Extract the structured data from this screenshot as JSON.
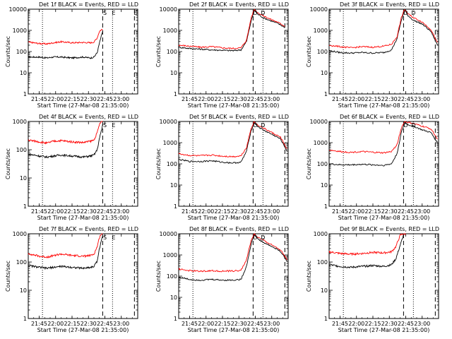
{
  "figure": {
    "background": "#ffffff",
    "events_color": "#000000",
    "lld_color": "#ff0000",
    "ylabel": "Counts/sec",
    "xlabel": "Start Time (27-Mar-08 21:35:00)",
    "x_ticks": [
      "21:45",
      "22:00",
      "22:15",
      "22:30",
      "22:45",
      "23:00"
    ]
  },
  "chart_data": [
    {
      "type": "line",
      "title": "Det 1f BLACK = Events, RED = LLD",
      "xlim": [
        "21:35",
        "23:15"
      ],
      "ylim": [
        1,
        10000
      ],
      "yscale": "log",
      "y_tick_labels": [
        "1",
        "10",
        "100",
        "1000",
        "10000"
      ],
      "vlines_dotted": [
        "21:48",
        "22:52"
      ],
      "vlines_dashed": [
        "22:43",
        "23:12"
      ],
      "markers": [
        {
          "label": "S",
          "time": "22:45"
        },
        {
          "label": "E",
          "time": "22:53"
        },
        {
          "label": "E",
          "time": "23:13"
        }
      ],
      "series": [
        {
          "times": [
            "21:35",
            "21:45",
            "21:52",
            "21:58",
            "22:05",
            "22:15",
            "22:25",
            "22:32",
            "22:35",
            "22:38",
            "22:40",
            "22:42",
            "22:43"
          ],
          "values": [
            55,
            55,
            50,
            55,
            55,
            50,
            55,
            50,
            55,
            90,
            250,
            600,
            900
          ]
        },
        {
          "times": [
            "21:35",
            "21:45",
            "21:52",
            "21:58",
            "22:05",
            "22:15",
            "22:25",
            "22:32",
            "22:35",
            "22:38",
            "22:40",
            "22:42",
            "22:43"
          ],
          "values": [
            280,
            240,
            230,
            260,
            290,
            260,
            270,
            260,
            280,
            450,
            900,
            1100,
            1100
          ]
        }
      ]
    },
    {
      "type": "line",
      "title": "Det 2f BLACK = Events, RED = LLD",
      "xlim": [
        "21:35",
        "23:15"
      ],
      "ylim": [
        1,
        10000
      ],
      "yscale": "log",
      "y_tick_labels": [
        "1",
        "10",
        "100",
        "1000",
        "10000"
      ],
      "vlines_dotted": [
        "21:48",
        "22:52"
      ],
      "vlines_dashed": [
        "22:43",
        "23:12"
      ],
      "markers": [
        {
          "label": "D",
          "time": "22:45"
        },
        {
          "label": "D",
          "time": "22:52"
        }
      ],
      "series": [
        {
          "times": [
            "21:35",
            "21:45",
            "21:55",
            "22:05",
            "22:15",
            "22:25",
            "22:32",
            "22:37",
            "22:41",
            "22:44",
            "22:47",
            "22:52",
            "22:58",
            "23:05",
            "23:12"
          ],
          "values": [
            160,
            140,
            130,
            120,
            115,
            110,
            120,
            300,
            2500,
            9000,
            6000,
            4000,
            3000,
            2200,
            1400
          ]
        },
        {
          "times": [
            "21:35",
            "21:45",
            "21:55",
            "22:05",
            "22:15",
            "22:25",
            "22:32",
            "22:37",
            "22:41",
            "22:44",
            "22:47",
            "22:52",
            "22:58",
            "23:05",
            "23:12"
          ],
          "values": [
            200,
            180,
            160,
            170,
            150,
            140,
            150,
            350,
            3500,
            10000,
            7000,
            5000,
            3500,
            2500,
            1600
          ]
        }
      ]
    },
    {
      "type": "line",
      "title": "Det 3f BLACK = Events, RED = LLD",
      "xlim": [
        "21:35",
        "23:15"
      ],
      "ylim": [
        1,
        10000
      ],
      "yscale": "log",
      "y_tick_labels": [
        "1",
        "10",
        "100",
        "1000",
        "10000"
      ],
      "vlines_dotted": [
        "21:48",
        "22:52"
      ],
      "vlines_dashed": [
        "22:43",
        "23:12"
      ],
      "markers": [
        {
          "label": "D",
          "time": "22:45"
        },
        {
          "label": "D",
          "time": "22:52"
        }
      ],
      "series": [
        {
          "times": [
            "21:35",
            "21:45",
            "21:55",
            "22:05",
            "22:15",
            "22:25",
            "22:32",
            "22:37",
            "22:41",
            "22:44",
            "22:47",
            "22:52",
            "23:00",
            "23:08",
            "23:14"
          ],
          "values": [
            110,
            90,
            85,
            90,
            85,
            90,
            120,
            400,
            3000,
            9000,
            5000,
            3000,
            2000,
            900,
            200
          ]
        },
        {
          "times": [
            "21:35",
            "21:45",
            "21:55",
            "22:05",
            "22:15",
            "22:25",
            "22:32",
            "22:37",
            "22:41",
            "22:44",
            "22:47",
            "22:52",
            "23:00",
            "23:08",
            "23:14"
          ],
          "values": [
            200,
            170,
            150,
            170,
            160,
            180,
            220,
            500,
            4000,
            10000,
            6000,
            4000,
            2500,
            1100,
            250
          ]
        }
      ]
    },
    {
      "type": "line",
      "title": "Det 4f BLACK = Events, RED = LLD",
      "xlim": [
        "21:35",
        "23:15"
      ],
      "ylim": [
        1,
        1000
      ],
      "yscale": "log",
      "y_tick_labels": [
        "1",
        "10",
        "100",
        "1000"
      ],
      "vlines_dotted": [
        "21:48",
        "22:52"
      ],
      "vlines_dashed": [
        "22:43",
        "23:12"
      ],
      "markers": [
        {
          "label": "S",
          "time": "22:45"
        },
        {
          "label": "E",
          "time": "22:53"
        }
      ],
      "series": [
        {
          "times": [
            "21:35",
            "21:45",
            "21:52",
            "21:58",
            "22:05",
            "22:15",
            "22:25",
            "22:32",
            "22:35",
            "22:38",
            "22:40",
            "22:42",
            "22:43"
          ],
          "values": [
            70,
            60,
            55,
            60,
            65,
            60,
            55,
            60,
            65,
            100,
            250,
            500,
            800
          ]
        },
        {
          "times": [
            "21:35",
            "21:45",
            "21:52",
            "21:58",
            "22:05",
            "22:15",
            "22:25",
            "22:32",
            "22:35",
            "22:38",
            "22:40",
            "22:42",
            "22:43"
          ],
          "values": [
            220,
            190,
            170,
            200,
            210,
            190,
            180,
            200,
            220,
            400,
            800,
            1000,
            1000
          ]
        }
      ]
    },
    {
      "type": "line",
      "title": "Det 5f BLACK = Events, RED = LLD",
      "xlim": [
        "21:35",
        "23:15"
      ],
      "ylim": [
        1,
        10000
      ],
      "yscale": "log",
      "y_tick_labels": [
        "1",
        "10",
        "100",
        "1000",
        "10000"
      ],
      "vlines_dotted": [
        "21:48",
        "22:52"
      ],
      "vlines_dashed": [
        "22:43",
        "23:12"
      ],
      "markers": [
        {
          "label": "D",
          "time": "22:45"
        },
        {
          "label": "D",
          "time": "22:52"
        }
      ],
      "series": [
        {
          "times": [
            "21:35",
            "21:45",
            "21:55",
            "22:05",
            "22:15",
            "22:25",
            "22:32",
            "22:37",
            "22:41",
            "22:44",
            "22:47",
            "22:52",
            "23:00",
            "23:08",
            "23:14"
          ],
          "values": [
            160,
            130,
            130,
            140,
            120,
            110,
            120,
            400,
            3500,
            9000,
            6000,
            4000,
            2500,
            1500,
            400
          ]
        },
        {
          "times": [
            "21:35",
            "21:45",
            "21:55",
            "22:05",
            "22:15",
            "22:25",
            "22:32",
            "22:37",
            "22:41",
            "22:44",
            "22:47",
            "22:52",
            "23:00",
            "23:08",
            "23:14"
          ],
          "values": [
            300,
            250,
            240,
            260,
            230,
            220,
            240,
            600,
            4500,
            10000,
            7000,
            5000,
            3000,
            1800,
            500
          ]
        }
      ]
    },
    {
      "type": "line",
      "title": "Det 6f BLACK = Events, RED = LLD",
      "xlim": [
        "21:35",
        "23:15"
      ],
      "ylim": [
        1,
        10000
      ],
      "yscale": "log",
      "y_tick_labels": [
        "1",
        "10",
        "100",
        "1000",
        "10000"
      ],
      "vlines_dotted": [
        "21:48",
        "22:52"
      ],
      "vlines_dashed": [
        "22:43",
        "23:12"
      ],
      "markers": [
        {
          "label": "D",
          "time": "22:45"
        },
        {
          "label": "D",
          "time": "22:52"
        }
      ],
      "series": [
        {
          "times": [
            "21:35",
            "21:45",
            "21:55",
            "22:05",
            "22:15",
            "22:25",
            "22:32",
            "22:37",
            "22:41",
            "22:44",
            "22:47",
            "22:52",
            "23:00",
            "23:08",
            "23:14"
          ],
          "values": [
            100,
            90,
            90,
            95,
            90,
            85,
            100,
            300,
            3000,
            9000,
            7000,
            6000,
            4000,
            3000,
            1000
          ]
        },
        {
          "times": [
            "21:35",
            "21:45",
            "21:55",
            "22:05",
            "22:15",
            "22:25",
            "22:32",
            "22:37",
            "22:41",
            "22:44",
            "22:47",
            "22:52",
            "23:00",
            "23:08",
            "23:14"
          ],
          "values": [
            450,
            380,
            350,
            380,
            350,
            330,
            380,
            800,
            5000,
            10000,
            9000,
            8000,
            6000,
            4500,
            1500
          ]
        }
      ]
    },
    {
      "type": "line",
      "title": "Det 7f BLACK = Events, RED = LLD",
      "xlim": [
        "21:35",
        "23:15"
      ],
      "ylim": [
        1,
        1000
      ],
      "yscale": "log",
      "y_tick_labels": [
        "1",
        "10",
        "100",
        "1000"
      ],
      "vlines_dotted": [
        "21:48",
        "22:52"
      ],
      "vlines_dashed": [
        "22:43",
        "23:12"
      ],
      "markers": [
        {
          "label": "S",
          "time": "22:45"
        },
        {
          "label": "E",
          "time": "22:53"
        }
      ],
      "series": [
        {
          "times": [
            "21:35",
            "21:45",
            "21:52",
            "21:58",
            "22:05",
            "22:15",
            "22:25",
            "22:32",
            "22:35",
            "22:38",
            "22:40",
            "22:42",
            "22:43"
          ],
          "values": [
            75,
            65,
            60,
            65,
            70,
            65,
            60,
            65,
            70,
            110,
            300,
            600,
            850
          ]
        },
        {
          "times": [
            "21:35",
            "21:45",
            "21:52",
            "21:58",
            "22:05",
            "22:15",
            "22:25",
            "22:32",
            "22:35",
            "22:38",
            "22:40",
            "22:42",
            "22:43"
          ],
          "values": [
            200,
            160,
            150,
            170,
            190,
            170,
            160,
            170,
            190,
            350,
            750,
            1000,
            1000
          ]
        }
      ]
    },
    {
      "type": "line",
      "title": "Det 8f BLACK = Events, RED = LLD",
      "xlim": [
        "21:35",
        "23:15"
      ],
      "ylim": [
        1,
        10000
      ],
      "yscale": "log",
      "y_tick_labels": [
        "1",
        "10",
        "100",
        "1000",
        "10000"
      ],
      "vlines_dotted": [
        "21:48",
        "22:52"
      ],
      "vlines_dashed": [
        "22:43",
        "23:12"
      ],
      "markers": [
        {
          "label": "D",
          "time": "22:45"
        },
        {
          "label": "D",
          "time": "22:52"
        }
      ],
      "series": [
        {
          "times": [
            "21:35",
            "21:45",
            "21:55",
            "22:05",
            "22:15",
            "22:25",
            "22:32",
            "22:37",
            "22:41",
            "22:44",
            "22:47",
            "22:52",
            "23:00",
            "23:08",
            "23:14"
          ],
          "values": [
            90,
            70,
            65,
            70,
            65,
            65,
            70,
            300,
            3000,
            9000,
            6000,
            4000,
            2500,
            1500,
            500
          ]
        },
        {
          "times": [
            "21:35",
            "21:45",
            "21:55",
            "22:05",
            "22:15",
            "22:25",
            "22:32",
            "22:37",
            "22:41",
            "22:44",
            "22:47",
            "22:52",
            "23:00",
            "23:08",
            "23:14"
          ],
          "values": [
            220,
            180,
            170,
            180,
            170,
            175,
            190,
            600,
            4500,
            10000,
            7000,
            5000,
            3000,
            1800,
            600
          ]
        }
      ]
    },
    {
      "type": "line",
      "title": "Det 9f BLACK = Events, RED = LLD",
      "xlim": [
        "21:35",
        "23:15"
      ],
      "ylim": [
        1,
        1000
      ],
      "yscale": "log",
      "y_tick_labels": [
        "1",
        "10",
        "100",
        "1000"
      ],
      "vlines_dotted": [
        "21:48",
        "22:52"
      ],
      "vlines_dashed": [
        "22:43",
        "23:12"
      ],
      "markers": [],
      "series": [
        {
          "times": [
            "21:35",
            "21:45",
            "21:55",
            "22:05",
            "22:15",
            "22:25",
            "22:32",
            "22:36",
            "22:40",
            "22:43",
            "22:45"
          ],
          "values": [
            80,
            70,
            65,
            70,
            75,
            70,
            80,
            130,
            400,
            900,
            1000
          ]
        },
        {
          "times": [
            "21:35",
            "21:45",
            "21:55",
            "22:05",
            "22:15",
            "22:25",
            "22:32",
            "22:36",
            "22:40",
            "22:43",
            "22:45"
          ],
          "values": [
            230,
            200,
            190,
            200,
            220,
            210,
            230,
            350,
            900,
            1000,
            1000
          ]
        }
      ]
    }
  ]
}
